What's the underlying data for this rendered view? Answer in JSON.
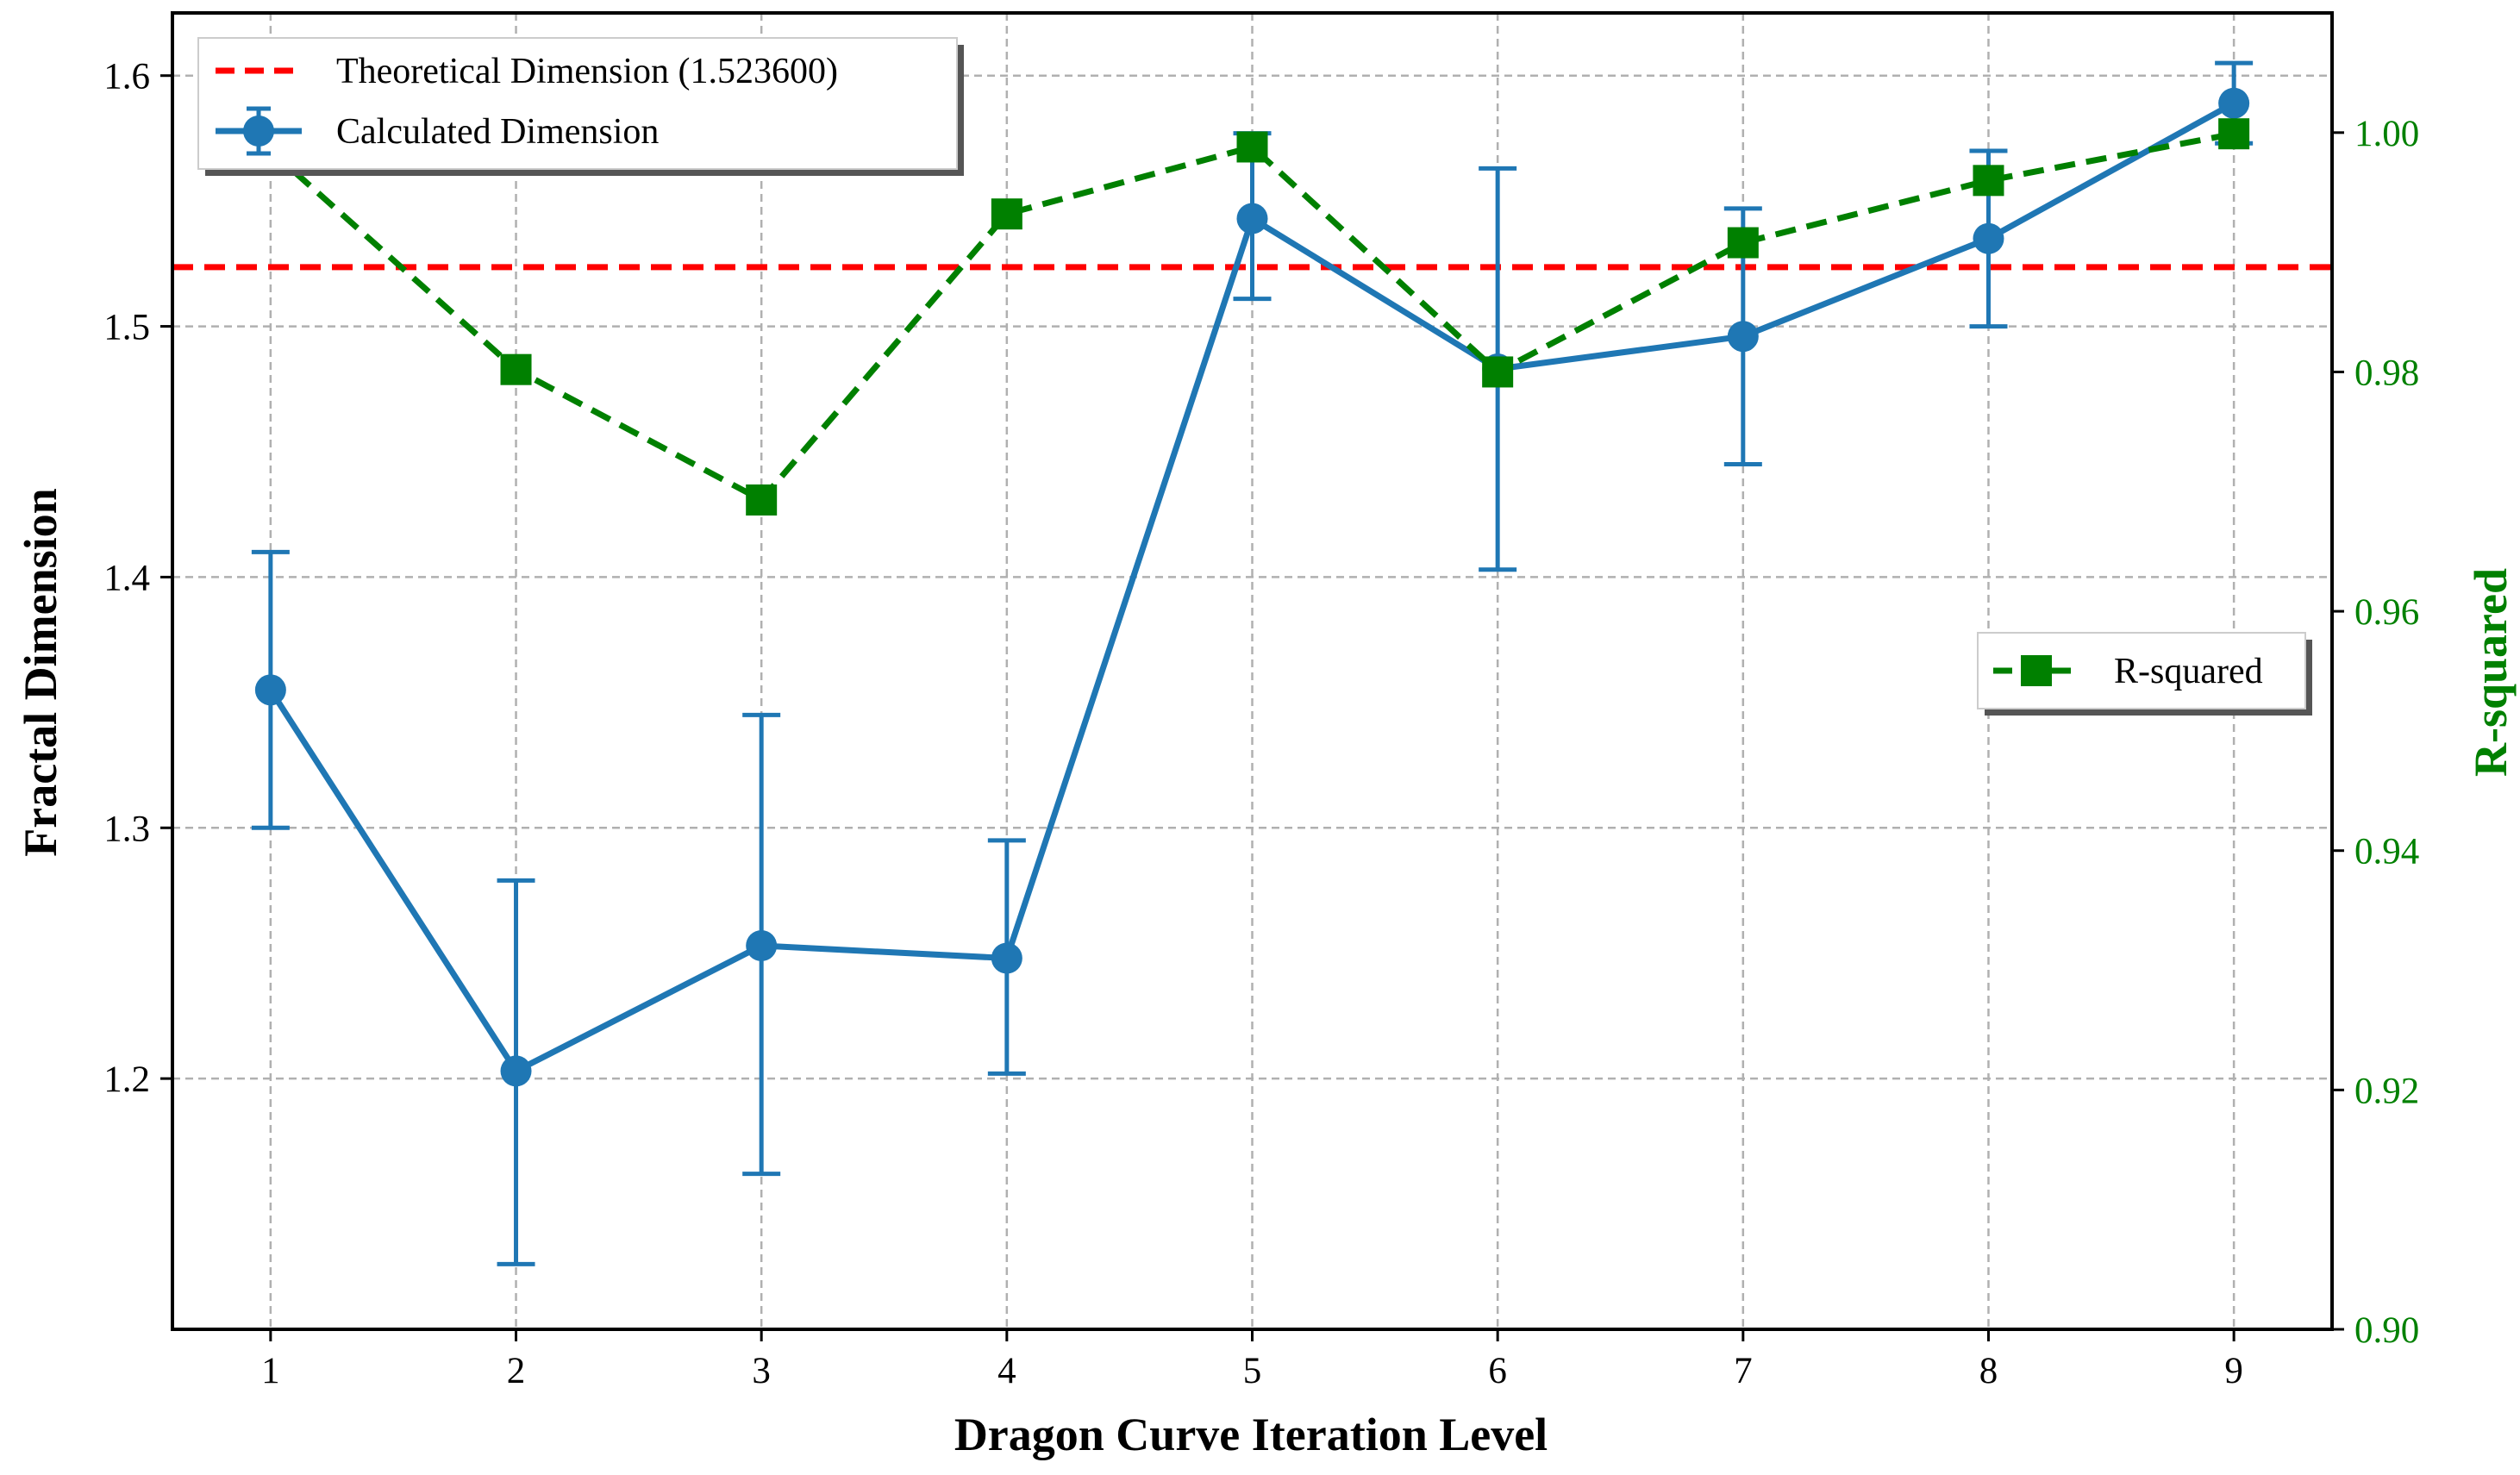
{
  "chart_data": {
    "type": "line",
    "xlabel": "Dragon Curve Iteration Level",
    "ylabel_left": "Fractal Dimension",
    "ylabel_right": "R-squared",
    "x": [
      1,
      2,
      3,
      4,
      5,
      6,
      7,
      8,
      9
    ],
    "xlim": [
      0.6,
      9.4
    ],
    "ylim_left": [
      1.1,
      1.625
    ],
    "ylim_right": [
      0.9,
      1.01
    ],
    "xticks": [
      "1",
      "2",
      "3",
      "4",
      "5",
      "6",
      "7",
      "8",
      "9"
    ],
    "yticks_left": [
      {
        "value": 1.2,
        "label": "1.2"
      },
      {
        "value": 1.3,
        "label": "1.3"
      },
      {
        "value": 1.4,
        "label": "1.4"
      },
      {
        "value": 1.5,
        "label": "1.5"
      },
      {
        "value": 1.6,
        "label": "1.6"
      }
    ],
    "yticks_right": [
      {
        "value": 0.9,
        "label": "0.90"
      },
      {
        "value": 0.92,
        "label": "0.92"
      },
      {
        "value": 0.94,
        "label": "0.94"
      },
      {
        "value": 0.96,
        "label": "0.96"
      },
      {
        "value": 0.98,
        "label": "0.98"
      },
      {
        "value": 1.0,
        "label": "1.00"
      }
    ],
    "grid": true,
    "reference_line": {
      "name": "Theoretical Dimension (1.523600)",
      "value": 1.5236,
      "color": "#ff0000",
      "style": "dashed"
    },
    "series": [
      {
        "name": "Calculated Dimension",
        "axis": "left",
        "color": "#1f77b4",
        "marker": "circle",
        "values": [
          1.355,
          1.203,
          1.253,
          1.248,
          1.543,
          1.483,
          1.496,
          1.535,
          1.589
        ],
        "err_low": [
          1.3,
          1.126,
          1.162,
          1.202,
          1.511,
          1.403,
          1.445,
          1.5,
          1.573
        ],
        "err_high": [
          1.41,
          1.279,
          1.345,
          1.295,
          1.577,
          1.563,
          1.547,
          1.57,
          1.605
        ]
      },
      {
        "name": "R-squared",
        "axis": "right",
        "color": "#008000",
        "marker": "square",
        "style": "dashed",
        "values": [
          0.9985,
          0.9802,
          0.9693,
          0.9932,
          0.9988,
          0.98,
          0.9908,
          0.996,
          0.9999
        ]
      }
    ],
    "legend_main_position": "top-left",
    "legend_right_position": "center-right"
  }
}
